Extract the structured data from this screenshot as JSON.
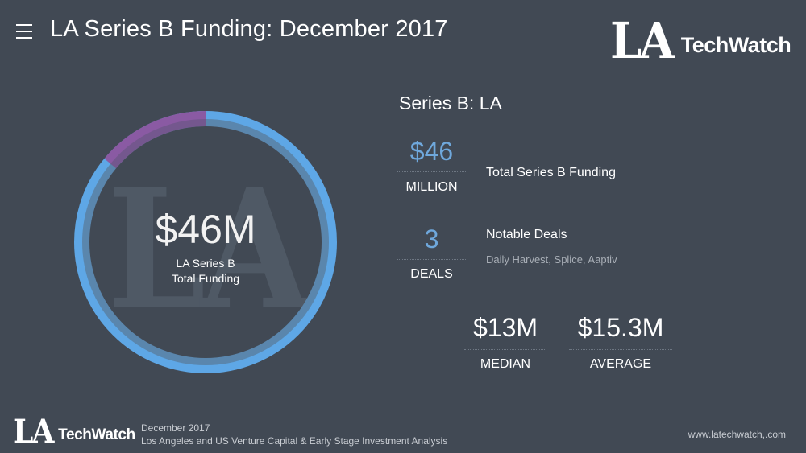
{
  "header": {
    "title": "LA Series B Funding: December 2017",
    "menu_icon": "hamburger-menu-icon"
  },
  "brand": {
    "logo_la": "LA",
    "logo_techwatch": "TechWatch"
  },
  "donut": {
    "value": "$46M",
    "label_line1": "LA Series B",
    "label_line2": "Total Funding",
    "watermark": "LA",
    "highlight_fraction": 0.14,
    "colors": {
      "ring": "#5ea7e6",
      "ring_inner": "#5a86ad",
      "highlight": "#8a5aa3",
      "highlight_inner": "#74578e",
      "watermark": "#4f5965"
    }
  },
  "panel": {
    "title": "Series B: LA",
    "funding": {
      "value": "$46",
      "unit": "MILLION",
      "label": "Total Series B Funding"
    },
    "deals": {
      "value": "3",
      "unit": "DEALS",
      "label": "Notable Deals",
      "sub": "Daily Harvest, Splice, Aaptiv"
    },
    "median": {
      "value": "$13M",
      "unit": "MEDIAN"
    },
    "average": {
      "value": "$15.3M",
      "unit": "AVERAGE"
    }
  },
  "footer": {
    "logo_la": "LA",
    "logo_techwatch": "TechWatch",
    "line1": "December 2017",
    "line2": "Los Angeles and US Venture Capital & Early Stage Investment Analysis",
    "url": "www.latechwatch,.com"
  },
  "colors": {
    "background": "#414954",
    "accent": "#6fa8dc"
  }
}
